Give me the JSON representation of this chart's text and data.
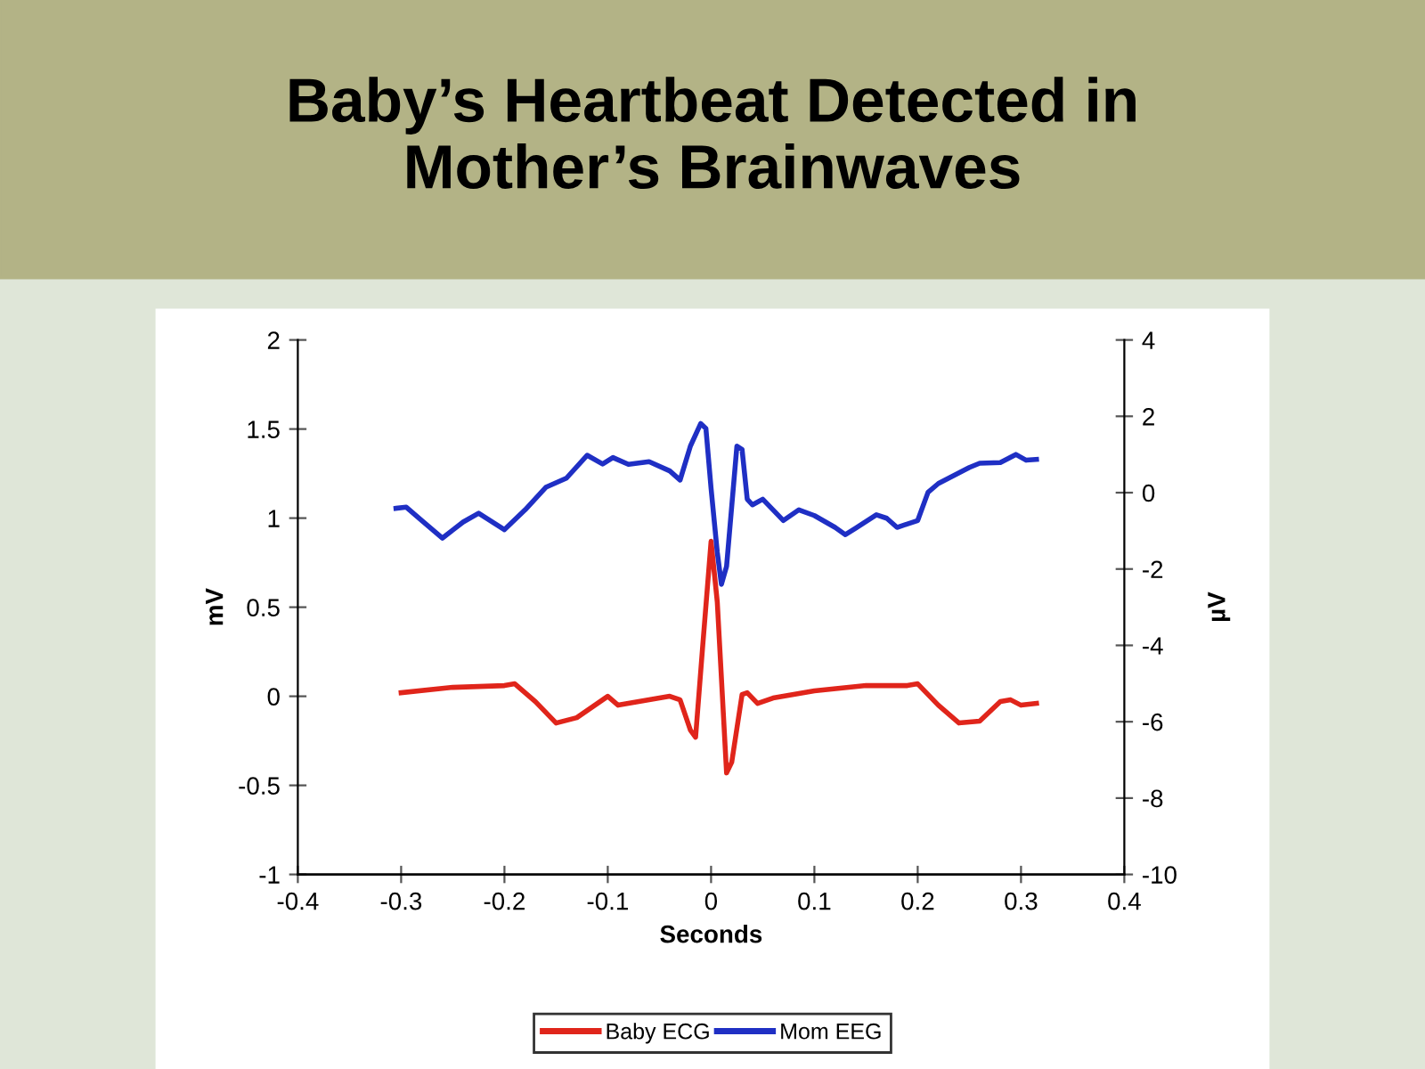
{
  "chart_data": {
    "type": "line",
    "title": "Baby’s Heartbeat Detected in\nMother’s Brainwaves",
    "xlabel": "Seconds",
    "ylabel": "mV",
    "y2label": "µV",
    "xlim": [
      -0.4,
      0.4
    ],
    "xticks": [
      -0.4,
      -0.3,
      -0.2,
      -0.1,
      0,
      0.1,
      0.2,
      0.3,
      0.4
    ],
    "ylim": [
      -1,
      2
    ],
    "yticks": [
      -1,
      -0.5,
      0,
      0.5,
      1,
      1.5,
      2
    ],
    "y2lim": [
      -10,
      4
    ],
    "y2ticks": [
      -10,
      -8,
      -6,
      -4,
      -2,
      0,
      2,
      4
    ],
    "grid": false,
    "legend": "bottom",
    "marker": "none",
    "line_style": "solid",
    "series": [
      {
        "name": "Baby ECG",
        "color": "#e0251b",
        "x": [
          -0.3,
          -0.25,
          -0.2,
          -0.19,
          -0.17,
          -0.15,
          -0.13,
          -0.1,
          -0.09,
          -0.07,
          -0.04,
          -0.03,
          -0.02,
          -0.015,
          -0.008,
          0,
          0.006,
          0.015,
          0.02,
          0.03,
          0.035,
          0.045,
          0.06,
          0.1,
          0.15,
          0.19,
          0.2,
          0.22,
          0.24,
          0.26,
          0.28,
          0.29,
          0.3,
          0.315
        ],
        "values": [
          0.02,
          0.05,
          0.06,
          0.07,
          -0.03,
          -0.15,
          -0.12,
          0.0,
          -0.05,
          -0.03,
          0.0,
          -0.02,
          -0.19,
          -0.23,
          0.29,
          0.87,
          0.53,
          -0.43,
          -0.37,
          0.01,
          0.02,
          -0.04,
          -0.01,
          0.03,
          0.06,
          0.06,
          0.07,
          -0.05,
          -0.15,
          -0.14,
          -0.03,
          -0.02,
          -0.05,
          -0.04
        ]
      },
      {
        "name": "Mom EEG",
        "color": "#1f2fc4",
        "axis": "y2",
        "x": [
          -0.305,
          -0.295,
          -0.28,
          -0.26,
          -0.24,
          -0.225,
          -0.2,
          -0.18,
          -0.16,
          -0.14,
          -0.12,
          -0.105,
          -0.095,
          -0.08,
          -0.06,
          -0.04,
          -0.03,
          -0.02,
          -0.01,
          -0.005,
          0,
          0.006,
          0.01,
          0.015,
          0.025,
          0.03,
          0.035,
          0.04,
          0.05,
          0.06,
          0.07,
          0.085,
          0.1,
          0.12,
          0.13,
          0.14,
          0.16,
          0.17,
          0.18,
          0.2,
          0.21,
          0.22,
          0.25,
          0.26,
          0.28,
          0.295,
          0.305,
          0.315
        ],
        "values": [
          -0.41,
          -0.38,
          -0.73,
          -1.19,
          -0.77,
          -0.54,
          -0.97,
          -0.45,
          0.14,
          0.38,
          0.98,
          0.75,
          0.92,
          0.74,
          0.81,
          0.57,
          0.33,
          1.22,
          1.81,
          1.68,
          0.11,
          -1.56,
          -2.4,
          -1.93,
          1.22,
          1.13,
          -0.17,
          -0.32,
          -0.17,
          -0.45,
          -0.73,
          -0.45,
          -0.6,
          -0.91,
          -1.1,
          -0.93,
          -0.58,
          -0.67,
          -0.91,
          -0.73,
          0.01,
          0.24,
          0.66,
          0.77,
          0.79,
          1.0,
          0.85,
          0.87
        ]
      }
    ]
  }
}
